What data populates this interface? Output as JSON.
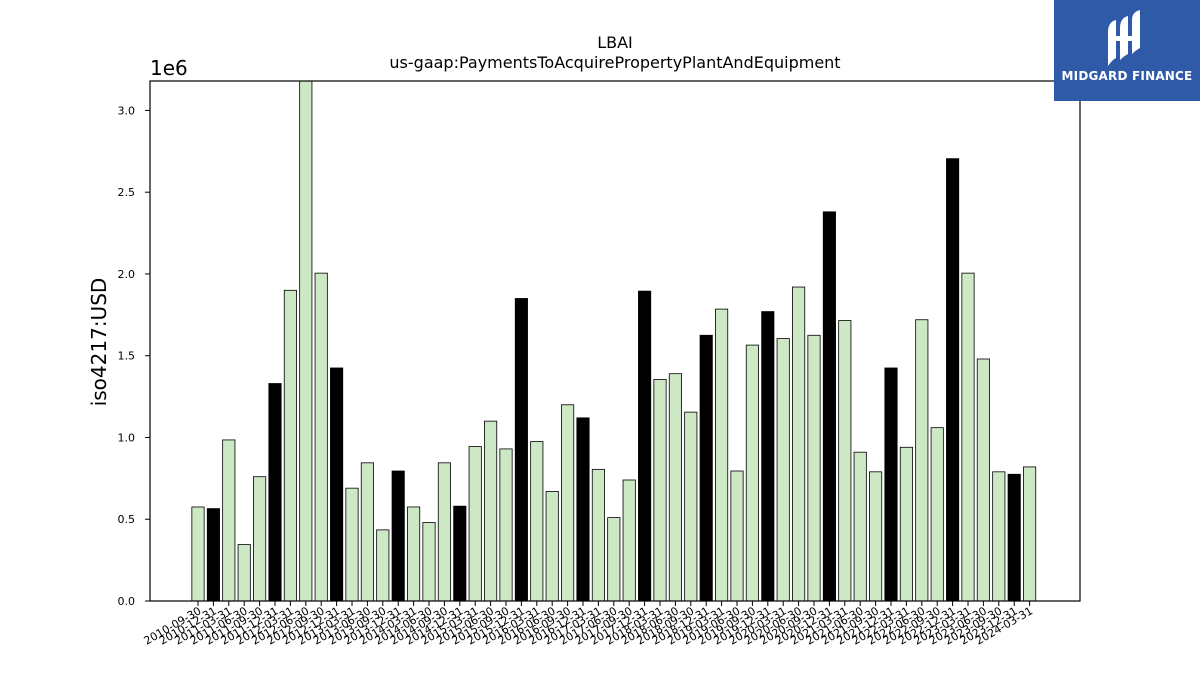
{
  "chart_data": {
    "type": "bar",
    "title": "LBAI",
    "subtitle": "us-gaap:PaymentsToAcquirePropertyPlantAndEquipment",
    "xlabel": "",
    "ylabel": "iso4217:USD",
    "offset_label": "1e6",
    "ylim": [
      0,
      3180000
    ],
    "yticks": [
      "0.0",
      "0.5",
      "1.0",
      "1.5",
      "2.0",
      "2.5",
      "3.0"
    ],
    "grid": false,
    "legend": "none",
    "colors": {
      "light": "#cce8c4",
      "dark": "#000000",
      "edge": "#000000"
    },
    "categories": [
      "2010-09-30",
      "2010-12-31",
      "2011-03-31",
      "2011-06-30",
      "2011-09-30",
      "2011-12-31",
      "2012-03-31",
      "2012-06-30",
      "2012-09-30",
      "2012-12-31",
      "2013-03-31",
      "2013-06-30",
      "2013-09-30",
      "2013-12-31",
      "2014-03-31",
      "2014-06-30",
      "2014-09-30",
      "2014-12-31",
      "2015-03-31",
      "2015-06-30",
      "2015-09-30",
      "2015-12-31",
      "2016-03-31",
      "2016-06-30",
      "2016-09-30",
      "2016-12-31",
      "2017-03-31",
      "2017-06-30",
      "2017-09-30",
      "2017-12-31",
      "2018-03-31",
      "2018-06-30",
      "2018-09-30",
      "2018-12-31",
      "2019-03-31",
      "2019-06-30",
      "2019-09-30",
      "2019-12-31",
      "2020-03-31",
      "2020-06-30",
      "2020-09-30",
      "2020-12-31",
      "2021-03-31",
      "2021-06-30",
      "2021-09-30",
      "2021-12-31",
      "2022-03-31",
      "2022-06-30",
      "2022-09-30",
      "2022-12-31",
      "2023-03-31",
      "2023-06-30",
      "2023-09-30",
      "2023-12-31",
      "2024-03-31"
    ],
    "values": [
      575000,
      565000,
      985000,
      345000,
      760000,
      1330000,
      1900000,
      3200000,
      2005000,
      1425000,
      690000,
      845000,
      435000,
      795000,
      575000,
      480000,
      845000,
      580000,
      945000,
      1100000,
      930000,
      1850000,
      975000,
      670000,
      1200000,
      1120000,
      805000,
      510000,
      740000,
      1895000,
      1355000,
      1390000,
      1155000,
      1625000,
      1785000,
      795000,
      1565000,
      1770000,
      1605000,
      1920000,
      1625000,
      2380000,
      1715000,
      910000,
      790000,
      1425000,
      940000,
      1720000,
      1060000,
      2705000,
      2005000,
      1480000,
      790000,
      775000,
      820000
    ],
    "dark": [
      false,
      true,
      false,
      false,
      false,
      true,
      false,
      false,
      false,
      true,
      false,
      false,
      false,
      true,
      false,
      false,
      false,
      true,
      false,
      false,
      false,
      true,
      false,
      false,
      false,
      true,
      false,
      false,
      false,
      true,
      false,
      false,
      false,
      true,
      false,
      false,
      false,
      true,
      false,
      false,
      false,
      true,
      false,
      false,
      false,
      true,
      false,
      false,
      false,
      true,
      false,
      false,
      false,
      true,
      false
    ]
  },
  "logo": {
    "text": "MIDGARD FINANCE",
    "icon": "midgard-logo-icon",
    "background": "#2f5aa8"
  }
}
